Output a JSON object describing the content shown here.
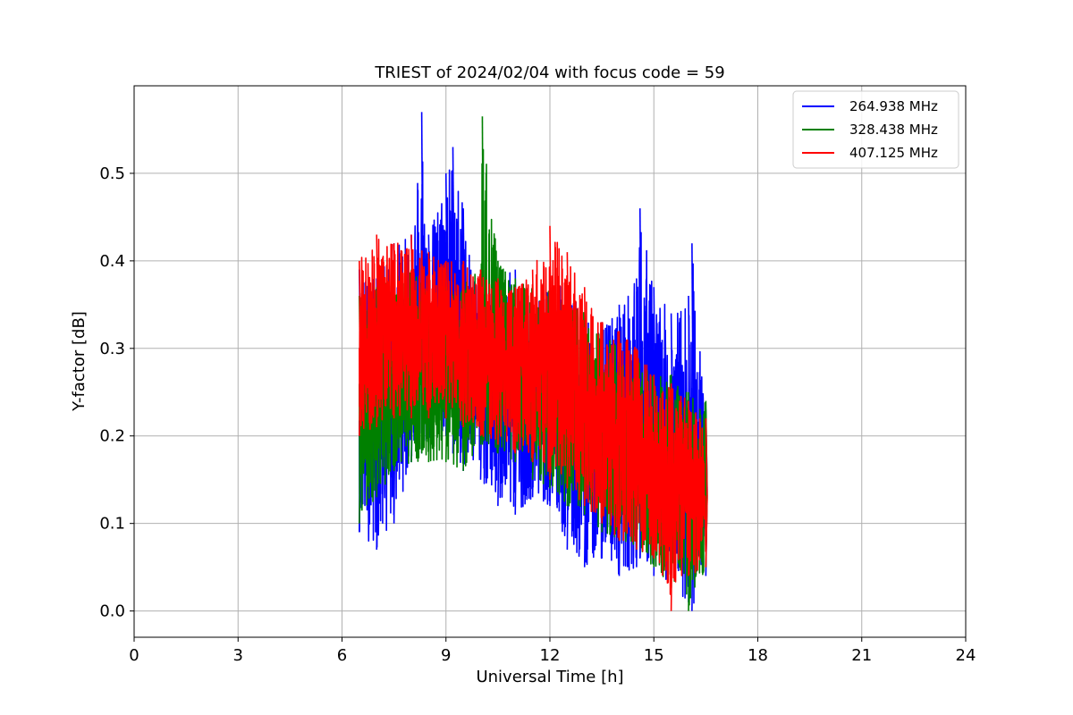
{
  "chart_data": {
    "type": "line",
    "title": "TRIEST of 2024/02/04 with focus code = 59",
    "xlabel": "Universal Time [h]",
    "ylabel": "Y-factor [dB]",
    "xlim": [
      0,
      24
    ],
    "ylim": [
      -0.03,
      0.6
    ],
    "xticks": [
      0,
      3,
      6,
      9,
      12,
      15,
      18,
      21,
      24
    ],
    "yticks": [
      0.0,
      0.1,
      0.2,
      0.3,
      0.4,
      0.5
    ],
    "ytick_labels": [
      "0.0",
      "0.1",
      "0.2",
      "0.3",
      "0.4",
      "0.5"
    ],
    "grid": true,
    "legend_position": "top-right",
    "series": [
      {
        "name": "264.938 MHz",
        "color": "#0000ff",
        "x": [
          6.5,
          7.0,
          7.5,
          8.0,
          8.3,
          8.5,
          9.0,
          9.2,
          9.5,
          10.0,
          10.5,
          11.0,
          11.5,
          12.0,
          12.5,
          13.0,
          13.5,
          14.0,
          14.5,
          14.6,
          15.0,
          15.5,
          16.0,
          16.1,
          16.5
        ],
        "upper": [
          0.39,
          0.38,
          0.42,
          0.43,
          0.57,
          0.43,
          0.5,
          0.53,
          0.46,
          0.36,
          0.38,
          0.39,
          0.35,
          0.37,
          0.38,
          0.33,
          0.33,
          0.35,
          0.38,
          0.46,
          0.37,
          0.34,
          0.36,
          0.42,
          0.23
        ],
        "lower": [
          0.09,
          0.07,
          0.1,
          0.17,
          0.18,
          0.19,
          0.2,
          0.18,
          0.16,
          0.15,
          0.12,
          0.11,
          0.13,
          0.12,
          0.07,
          0.05,
          0.06,
          0.04,
          0.05,
          0.06,
          0.04,
          0.03,
          0.01,
          0.0,
          0.04
        ],
        "center": [
          0.24,
          0.25,
          0.28,
          0.3,
          0.32,
          0.31,
          0.34,
          0.34,
          0.31,
          0.26,
          0.25,
          0.25,
          0.24,
          0.24,
          0.22,
          0.19,
          0.19,
          0.21,
          0.22,
          0.23,
          0.21,
          0.19,
          0.19,
          0.18,
          0.14
        ]
      },
      {
        "name": "328.438 MHz",
        "color": "#008000",
        "x": [
          6.5,
          7.0,
          7.5,
          8.0,
          8.5,
          9.0,
          9.5,
          10.0,
          10.05,
          10.5,
          11.0,
          11.5,
          12.0,
          12.5,
          13.0,
          13.5,
          14.0,
          14.5,
          15.0,
          15.5,
          16.0,
          16.5
        ],
        "upper": [
          0.36,
          0.37,
          0.38,
          0.39,
          0.38,
          0.37,
          0.38,
          0.39,
          0.565,
          0.4,
          0.38,
          0.37,
          0.37,
          0.36,
          0.34,
          0.32,
          0.31,
          0.29,
          0.27,
          0.27,
          0.25,
          0.24
        ],
        "lower": [
          0.1,
          0.13,
          0.16,
          0.17,
          0.17,
          0.17,
          0.16,
          0.19,
          0.19,
          0.18,
          0.17,
          0.15,
          0.14,
          0.12,
          0.11,
          0.09,
          0.08,
          0.07,
          0.05,
          0.03,
          0.0,
          0.05
        ],
        "center": [
          0.22,
          0.23,
          0.25,
          0.26,
          0.26,
          0.26,
          0.25,
          0.27,
          0.27,
          0.27,
          0.26,
          0.24,
          0.23,
          0.21,
          0.2,
          0.18,
          0.17,
          0.16,
          0.14,
          0.13,
          0.12,
          0.13
        ]
      },
      {
        "name": "407.125 MHz",
        "color": "#ff0000",
        "x": [
          6.5,
          7.0,
          7.5,
          8.0,
          8.5,
          9.0,
          9.5,
          10.0,
          10.5,
          11.0,
          11.5,
          12.0,
          12.5,
          13.0,
          13.5,
          14.0,
          14.5,
          15.0,
          15.5,
          16.0,
          16.5
        ],
        "upper": [
          0.4,
          0.43,
          0.42,
          0.43,
          0.41,
          0.4,
          0.4,
          0.39,
          0.38,
          0.37,
          0.39,
          0.44,
          0.41,
          0.37,
          0.33,
          0.32,
          0.3,
          0.27,
          0.26,
          0.24,
          0.22
        ],
        "lower": [
          0.2,
          0.21,
          0.22,
          0.22,
          0.22,
          0.22,
          0.21,
          0.2,
          0.19,
          0.18,
          0.17,
          0.15,
          0.14,
          0.12,
          0.1,
          0.08,
          0.07,
          0.06,
          0.0,
          0.04,
          0.05
        ],
        "center": [
          0.3,
          0.31,
          0.32,
          0.32,
          0.31,
          0.31,
          0.3,
          0.3,
          0.29,
          0.28,
          0.28,
          0.28,
          0.27,
          0.24,
          0.22,
          0.2,
          0.19,
          0.17,
          0.15,
          0.14,
          0.13
        ]
      }
    ]
  }
}
